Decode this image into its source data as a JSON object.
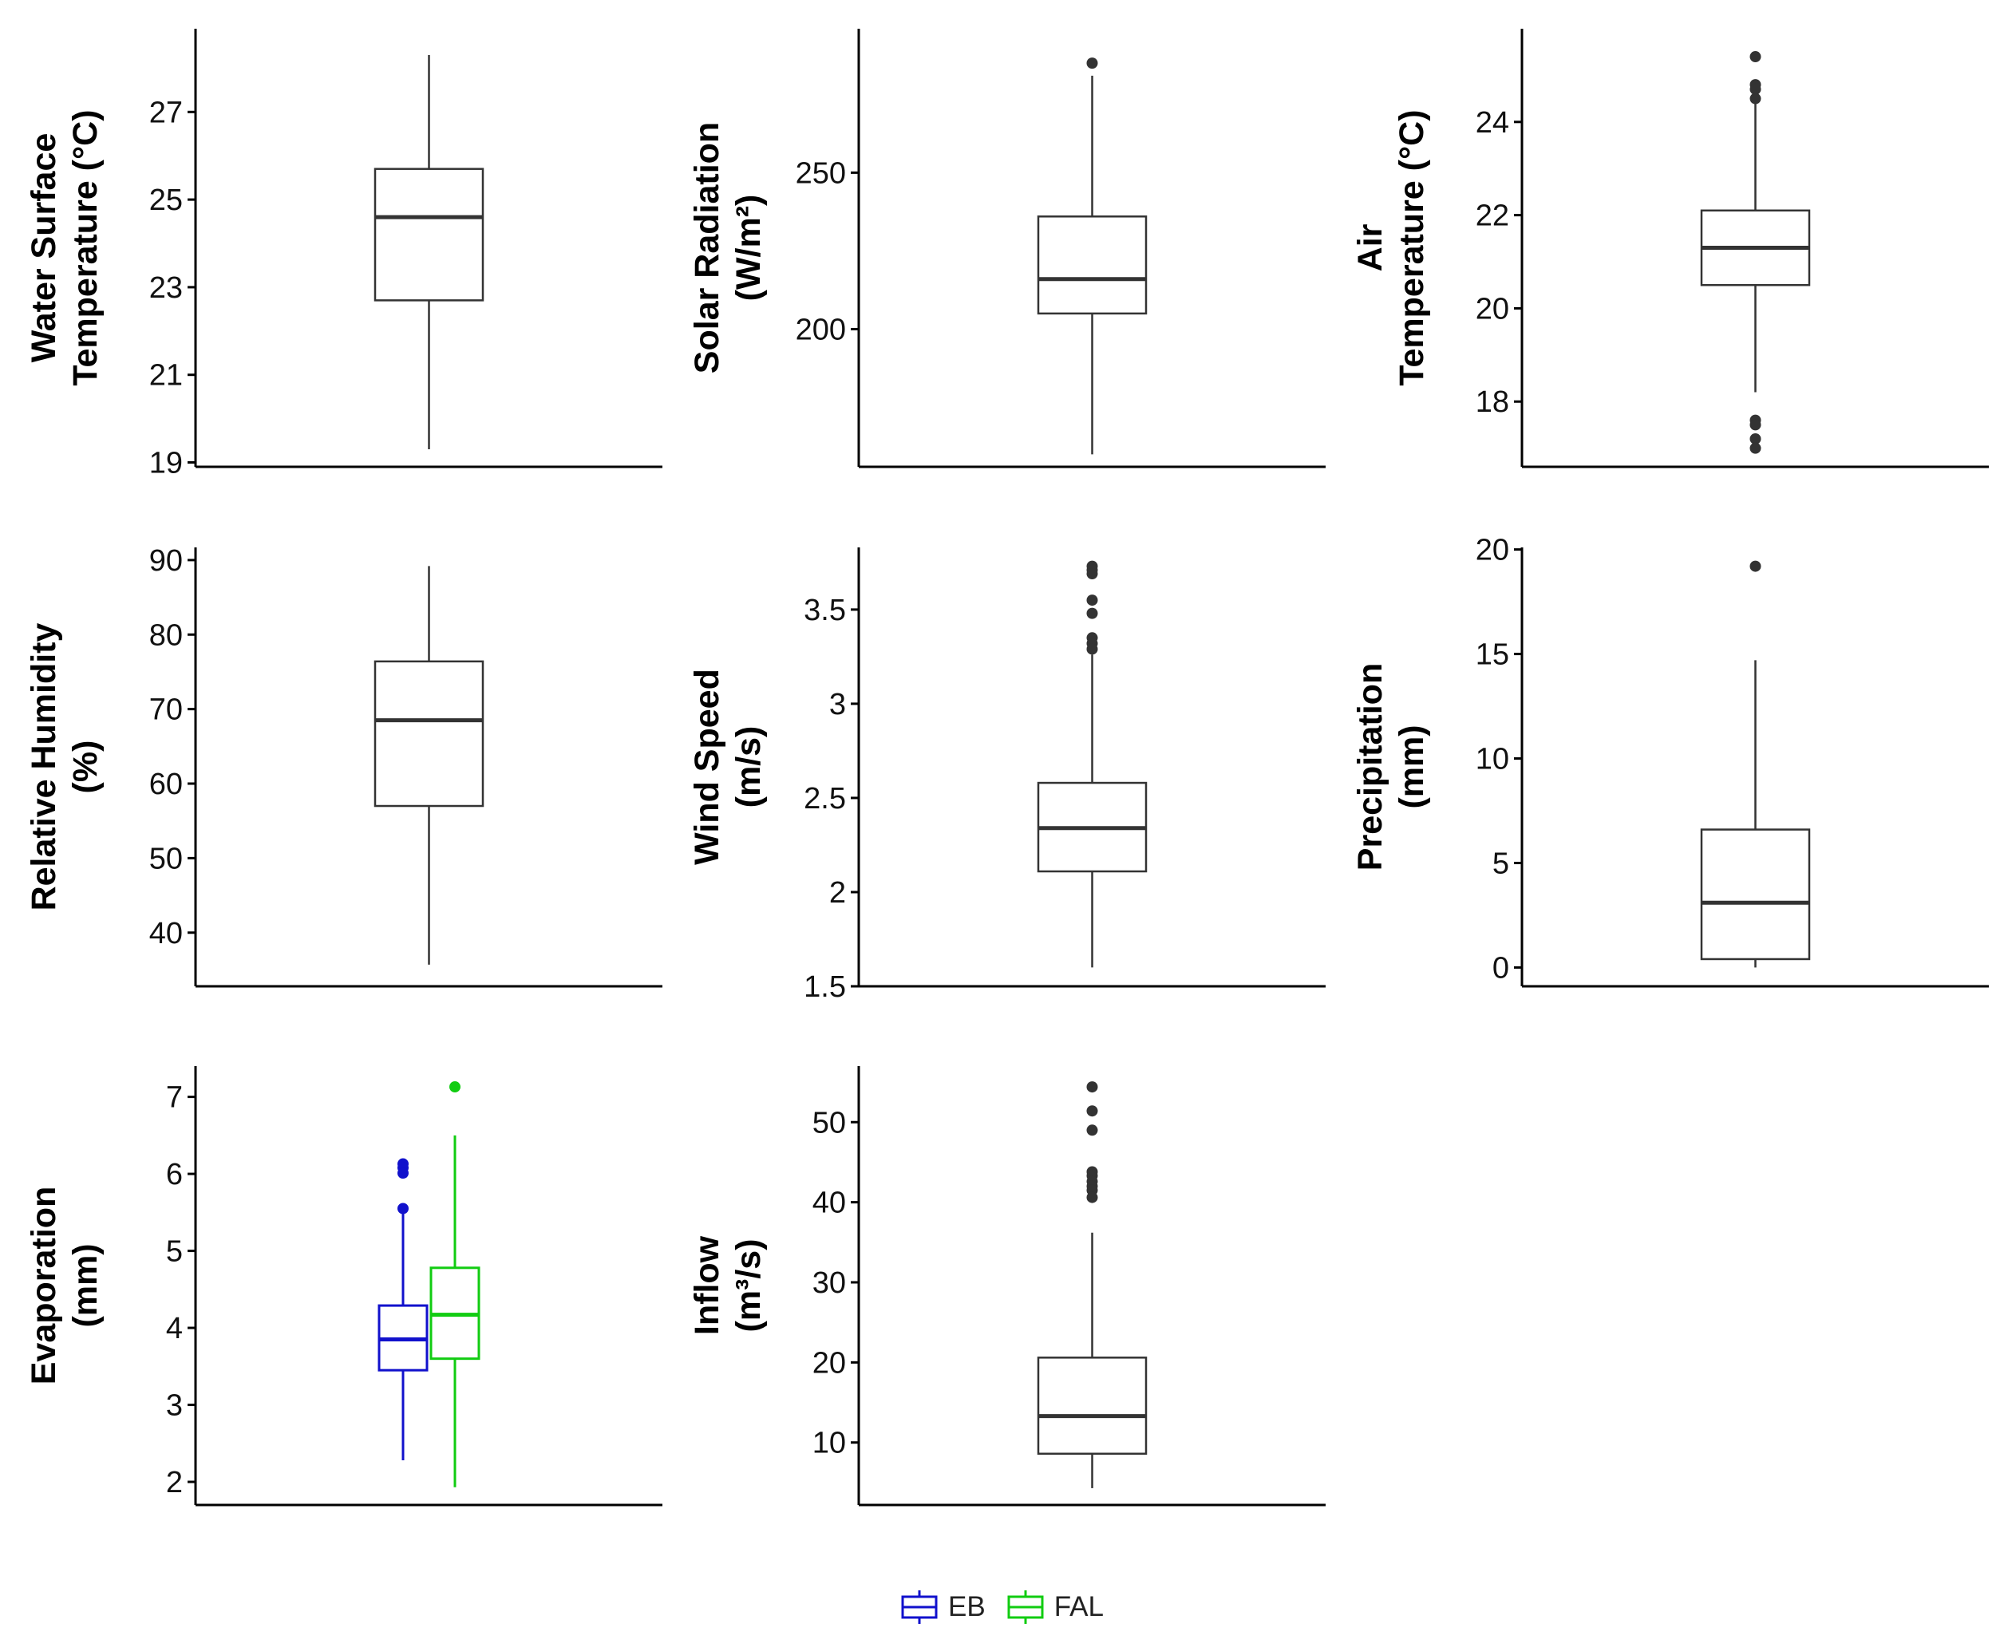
{
  "legend": {
    "items": [
      {
        "label": "EB",
        "color": "#1111cc"
      },
      {
        "label": "FAL",
        "color": "#11cc11"
      }
    ]
  },
  "colors": {
    "default_box": "#333333",
    "axis": "#000000"
  },
  "chart_data": [
    {
      "id": "water-surface-temperature",
      "type": "box",
      "ylabel": [
        "Water Surface",
        "Temperature (°C)"
      ],
      "yticks": [
        19,
        21,
        23,
        25,
        27
      ],
      "ylim": [
        18.9,
        28.9
      ],
      "series": [
        {
          "name": "",
          "color": "#333333",
          "min": 19.3,
          "q1": 22.7,
          "median": 24.6,
          "q3": 25.7,
          "max": 28.3,
          "outliers": []
        }
      ]
    },
    {
      "id": "solar-radiation",
      "type": "box",
      "ylabel": [
        "Solar Radiation",
        "(W/m²)"
      ],
      "yticks": [
        200,
        250
      ],
      "ylim": [
        156,
        296
      ],
      "series": [
        {
          "name": "",
          "color": "#333333",
          "min": 160,
          "q1": 205,
          "median": 216,
          "q3": 236,
          "max": 281,
          "outliers": [
            285
          ]
        }
      ]
    },
    {
      "id": "air-temperature",
      "type": "box",
      "ylabel": [
        "Air",
        "Temperature (°C)"
      ],
      "yticks": [
        18,
        20,
        22,
        24
      ],
      "ylim": [
        16.6,
        26.0
      ],
      "series": [
        {
          "name": "",
          "color": "#333333",
          "min": 18.2,
          "q1": 20.5,
          "median": 21.3,
          "q3": 22.1,
          "max": 24.4,
          "outliers": [
            25.4,
            24.8,
            24.7,
            24.5,
            17.6,
            17.5,
            17.2,
            17.0
          ]
        }
      ]
    },
    {
      "id": "relative-humidity",
      "type": "box",
      "ylabel": [
        "Relative Humidity",
        "(%)"
      ],
      "yticks": [
        40,
        50,
        60,
        70,
        80,
        90
      ],
      "ylim": [
        32.8,
        91.7
      ],
      "series": [
        {
          "name": "",
          "color": "#333333",
          "min": 35.7,
          "q1": 57.0,
          "median": 68.5,
          "q3": 76.4,
          "max": 89.2,
          "outliers": []
        }
      ]
    },
    {
      "id": "wind-speed",
      "type": "box",
      "ylabel": [
        "Wind Speed",
        "(m/s)"
      ],
      "yticks": [
        1.5,
        2.0,
        2.5,
        3.0,
        3.5
      ],
      "ylim": [
        1.5,
        3.83
      ],
      "series": [
        {
          "name": "",
          "color": "#333333",
          "min": 1.6,
          "q1": 2.11,
          "median": 2.34,
          "q3": 2.58,
          "max": 3.26,
          "outliers": [
            3.73,
            3.71,
            3.69,
            3.55,
            3.48,
            3.35,
            3.32,
            3.29
          ]
        }
      ]
    },
    {
      "id": "precipitation",
      "type": "box",
      "ylabel": [
        "Precipitation",
        "(mm)"
      ],
      "yticks": [
        0,
        5,
        10,
        15,
        20
      ],
      "ylim": [
        -0.9,
        20.1
      ],
      "series": [
        {
          "name": "",
          "color": "#333333",
          "min": 0.0,
          "q1": 0.4,
          "median": 3.1,
          "q3": 6.6,
          "max": 14.7,
          "outliers": [
            19.2
          ]
        }
      ]
    },
    {
      "id": "evaporation",
      "type": "box",
      "ylabel": [
        "Evaporation",
        "(mm)"
      ],
      "yticks": [
        2,
        3,
        4,
        5,
        6,
        7
      ],
      "ylim": [
        1.7,
        7.4
      ],
      "series": [
        {
          "name": "EB",
          "color": "#1111cc",
          "min": 2.28,
          "q1": 3.45,
          "median": 3.85,
          "q3": 4.29,
          "max": 5.55,
          "outliers": [
            6.13,
            6.08,
            6.01,
            5.55
          ]
        },
        {
          "name": "FAL",
          "color": "#11cc11",
          "min": 1.93,
          "q1": 3.6,
          "median": 4.17,
          "q3": 4.78,
          "max": 6.5,
          "outliers": [
            7.13
          ]
        }
      ]
    },
    {
      "id": "inflow",
      "type": "box",
      "ylabel": [
        "Inflow",
        "(m³/s)"
      ],
      "yticks": [
        10,
        20,
        30,
        40,
        50
      ],
      "ylim": [
        2.2,
        57.0
      ],
      "series": [
        {
          "name": "",
          "color": "#333333",
          "min": 4.3,
          "q1": 8.6,
          "median": 13.3,
          "q3": 20.6,
          "max": 36.2,
          "outliers": [
            54.4,
            51.4,
            49.0,
            43.8,
            43.3,
            42.6,
            42.0,
            41.5,
            40.6
          ]
        }
      ]
    }
  ]
}
